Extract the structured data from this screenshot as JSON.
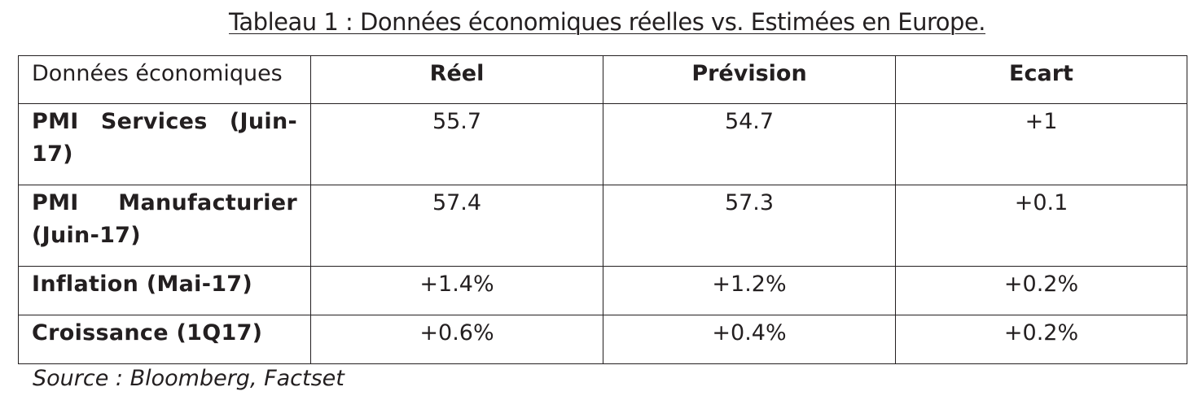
{
  "title": "Tableau 1 : Données économiques réelles vs. Estimées en Europe.",
  "table": {
    "headers": [
      "Données économiques",
      "Réel",
      "Prévision",
      "Ecart"
    ],
    "rows": [
      {
        "label": "PMI Services (Juin-17)",
        "reel": "55.7",
        "prevision": "54.7",
        "ecart": "+1"
      },
      {
        "label": "PMI Manufacturier (Juin-17)",
        "reel": "57.4",
        "prevision": "57.3",
        "ecart": "+0.1"
      },
      {
        "label": "Inflation (Mai-17)",
        "reel": "+1.4%",
        "prevision": "+1.2%",
        "ecart": "+0.2%"
      },
      {
        "label": "Croissance (1Q17)",
        "reel": "+0.6%",
        "prevision": "+0.4%",
        "ecart": "+0.2%"
      }
    ]
  },
  "source": "Source : Bloomberg, Factset"
}
